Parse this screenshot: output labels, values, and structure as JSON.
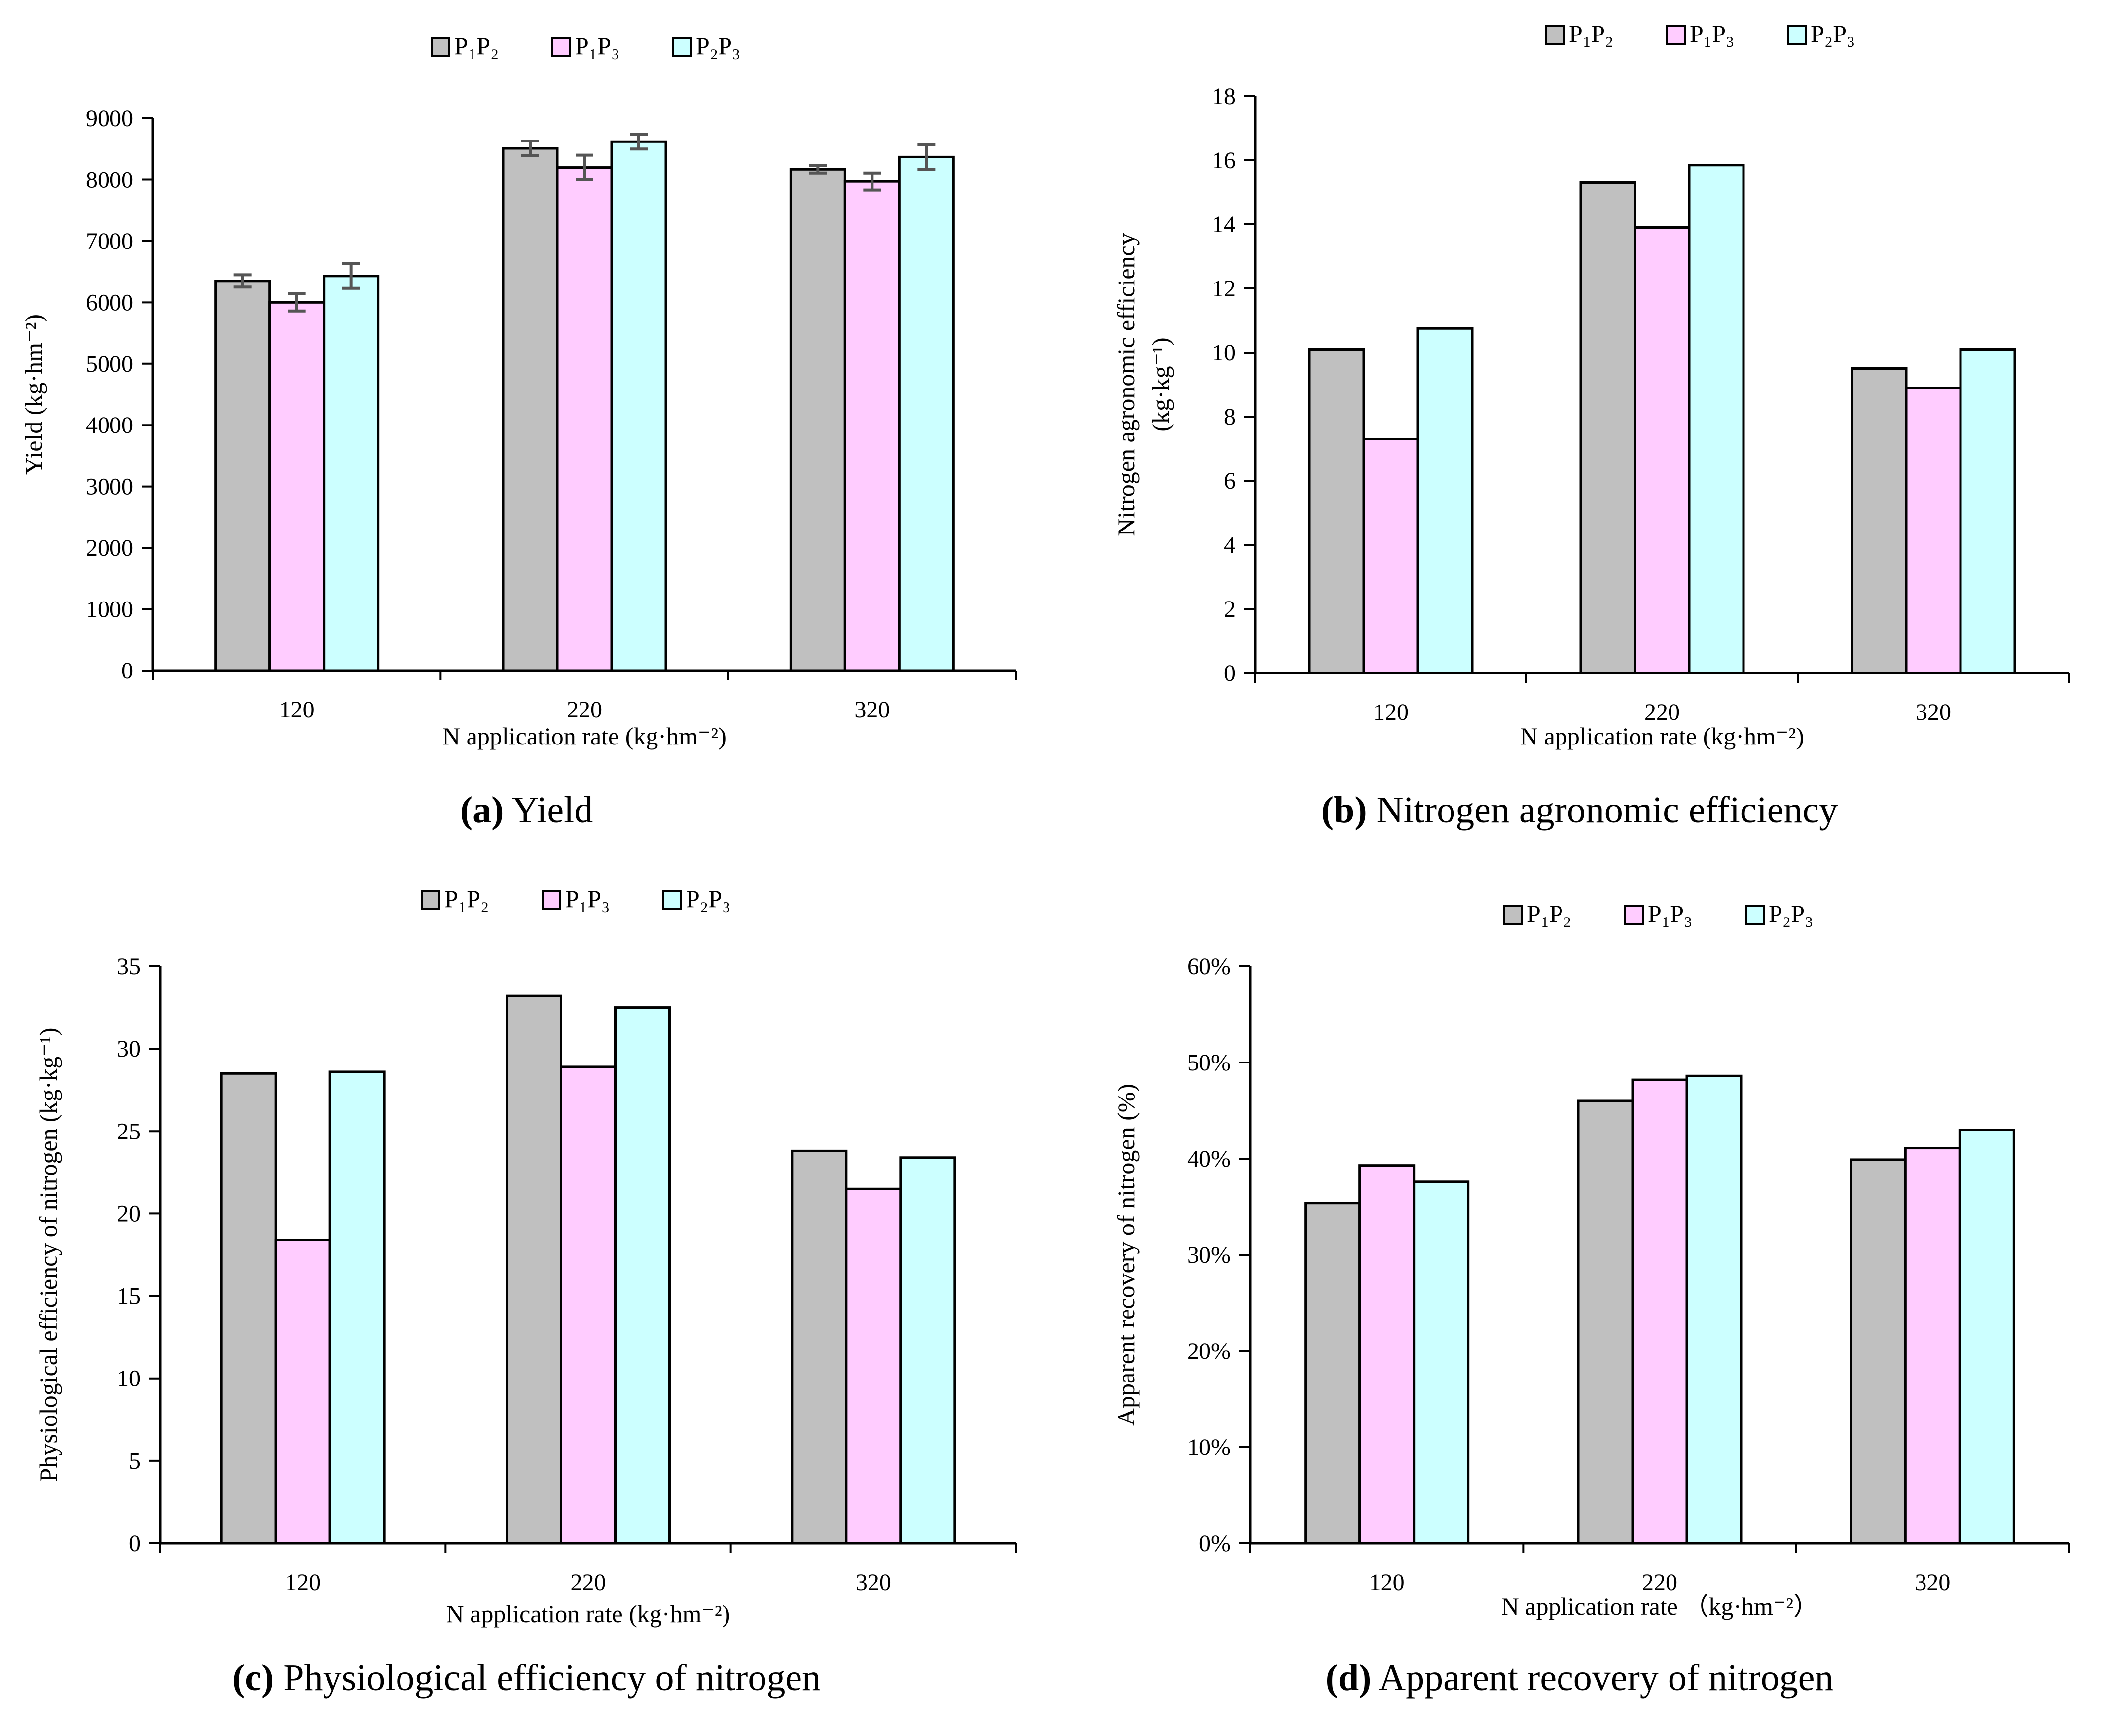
{
  "colors": {
    "P1P2": "#c0c0c0",
    "P1P3": "#ffccff",
    "P2P3": "#ccffff",
    "stroke": "#000000",
    "error": "#555555"
  },
  "legend": [
    {
      "key": "P1P2",
      "label": "P₁P₂"
    },
    {
      "key": "P1P3",
      "label": "P₁P₃"
    },
    {
      "key": "P2P3",
      "label": "P₂P₃"
    }
  ],
  "chart_data": [
    {
      "id": "a",
      "type": "bar",
      "caption_letter": "(a)",
      "caption_text": " Yield",
      "categories": [
        "120",
        "220",
        "320"
      ],
      "series": [
        {
          "name": "P₁P₂",
          "key": "P1P2",
          "values": [
            6350,
            8510,
            8170
          ],
          "errors": [
            100,
            120,
            60
          ]
        },
        {
          "name": "P₁P₃",
          "key": "P1P3",
          "values": [
            6000,
            8200,
            7970
          ],
          "errors": [
            140,
            200,
            140
          ]
        },
        {
          "name": "P₂P₃",
          "key": "P2P3",
          "values": [
            6430,
            8620,
            8370
          ],
          "errors": [
            200,
            120,
            200
          ]
        }
      ],
      "ylim": [
        0,
        9000
      ],
      "yticks": [
        "0",
        "1000",
        "2000",
        "3000",
        "4000",
        "5000",
        "6000",
        "7000",
        "8000",
        "9000"
      ],
      "ylabel": "Yield (kg·hm⁻²)",
      "xlabel": "N application rate (kg·hm⁻²)"
    },
    {
      "id": "b",
      "type": "bar",
      "caption_letter": "(b)",
      "caption_text": " Nitrogen agronomic efficiency",
      "categories": [
        "120",
        "220",
        "320"
      ],
      "series": [
        {
          "name": "P₁P₂",
          "key": "P1P2",
          "values": [
            10.1,
            15.3,
            9.5
          ]
        },
        {
          "name": "P₁P₃",
          "key": "P1P3",
          "values": [
            7.3,
            13.9,
            8.9
          ]
        },
        {
          "name": "P₂P₃",
          "key": "P2P3",
          "values": [
            10.75,
            15.85,
            10.1
          ]
        }
      ],
      "ylim": [
        0,
        18
      ],
      "yticks": [
        "0",
        "2",
        "4",
        "6",
        "8",
        "10",
        "12",
        "14",
        "16",
        "18"
      ],
      "ylabel": "Nitrogen agronomic efficiency",
      "ylabel2": "(kg·kg⁻¹)",
      "xlabel": "N application rate (kg·hm⁻²)"
    },
    {
      "id": "c",
      "type": "bar",
      "caption_letter": "(c)",
      "caption_text": " Physiological efficiency of nitrogen",
      "categories": [
        "120",
        "220",
        "320"
      ],
      "series": [
        {
          "name": "P₁P₂",
          "key": "P1P2",
          "values": [
            28.5,
            33.2,
            23.8
          ]
        },
        {
          "name": "P₁P₃",
          "key": "P1P3",
          "values": [
            18.4,
            28.9,
            21.5
          ]
        },
        {
          "name": "P₂P₃",
          "key": "P2P3",
          "values": [
            28.6,
            32.5,
            23.4
          ]
        }
      ],
      "ylim": [
        0,
        35
      ],
      "yticks": [
        "0",
        "5",
        "10",
        "15",
        "20",
        "25",
        "30",
        "35"
      ],
      "ylabel": "Physiological efficiency of nitrogen (kg·kg⁻¹)",
      "xlabel": "N application rate (kg·hm⁻²)"
    },
    {
      "id": "d",
      "type": "bar",
      "caption_letter": "(d)",
      "caption_text": " Apparent recovery of nitrogen",
      "categories": [
        "120",
        "220",
        "320"
      ],
      "series": [
        {
          "name": "P₁P₂",
          "key": "P1P2",
          "values": [
            35.4,
            46.0,
            39.9
          ]
        },
        {
          "name": "P₁P₃",
          "key": "P1P3",
          "values": [
            39.3,
            48.2,
            41.1
          ]
        },
        {
          "name": "P₂P₃",
          "key": "P2P3",
          "values": [
            37.6,
            48.6,
            43.0
          ]
        }
      ],
      "ylim": [
        0,
        60
      ],
      "yticks": [
        "0%",
        "10%",
        "20%",
        "30%",
        "40%",
        "50%",
        "60%"
      ],
      "ylabel": "Apparent recovery of nitrogen (%)",
      "xlabel": "N application rate （kg·hm⁻²）"
    }
  ]
}
